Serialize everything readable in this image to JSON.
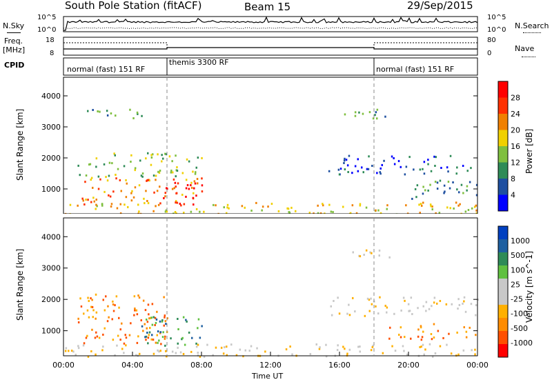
{
  "header": {
    "station": "South Pole Station (fitACF)",
    "beam": "Beam 15",
    "date": "29/Sep/2015"
  },
  "top_panels": {
    "nsky_label": "N.Sky",
    "nsky_ticks": [
      "10^5",
      "10^0"
    ],
    "nsearch_label": "N.Search",
    "nsearch_ticks": [
      "10^5",
      "10^0"
    ],
    "freq_label_1": "Freq.",
    "freq_label_2": "[MHz]",
    "freq_ticks": [
      "18",
      "8"
    ],
    "nave_label": "Nave",
    "nave_ticks": [
      "80",
      "0"
    ],
    "cpid_label": "CPID",
    "cpid_segments": [
      "normal (fast) 151 RF",
      "themis 3300 RF",
      "normal (fast) 151 RF"
    ]
  },
  "chart_data": [
    {
      "type": "heatmap",
      "title": "",
      "ylabel": "Slant Range [km]",
      "xlabel": "",
      "xlim": [
        0,
        24
      ],
      "ylim": [
        200,
        4600
      ],
      "y_ticks": [
        "1000",
        "2000",
        "3000",
        "4000"
      ],
      "colorbar_label": "Power [dB]",
      "colorbar_ticks": [
        "28",
        "24",
        "20",
        "16",
        "12",
        "8",
        "4"
      ],
      "colors": [
        "#0000ff",
        "#1e4fa0",
        "#2e8b57",
        "#7fbf3f",
        "#f0d000",
        "#f08000",
        "#ff3000",
        "#ff0000"
      ],
      "regions": [
        {
          "t0": 0.8,
          "t1": 8.0,
          "r0": 1400,
          "r1": 2200,
          "level": 3
        },
        {
          "t0": 1.0,
          "t1": 8.0,
          "r0": 500,
          "r1": 1400,
          "level": 5
        },
        {
          "t0": 5.6,
          "t1": 8.0,
          "r0": 500,
          "r1": 1300,
          "level": 7
        },
        {
          "t0": 15.0,
          "t1": 24.0,
          "r0": 1500,
          "r1": 2100,
          "level": 1
        },
        {
          "t0": 20.0,
          "t1": 24.0,
          "r0": 700,
          "r1": 1300,
          "level": 2
        },
        {
          "t0": 0.0,
          "t1": 24.0,
          "r0": 200,
          "r1": 600,
          "level": 4
        },
        {
          "t0": 1.0,
          "t1": 5.0,
          "r0": 3300,
          "r1": 3600,
          "level": 2
        },
        {
          "t0": 16.0,
          "t1": 19.0,
          "r0": 3300,
          "r1": 3600,
          "level": 2
        }
      ]
    },
    {
      "type": "heatmap",
      "title": "",
      "ylabel": "Slant Range [km]",
      "xlabel": "Time UT",
      "xlim": [
        0,
        24
      ],
      "ylim": [
        200,
        4600
      ],
      "x_ticks": [
        "00:00",
        "04:00",
        "08:00",
        "12:00",
        "16:00",
        "20:00",
        "00:00"
      ],
      "y_ticks": [
        "1000",
        "2000",
        "3000",
        "4000"
      ],
      "colorbar_label": "Velocity [m s^-1]",
      "colorbar_ticks": [
        "1000",
        "500",
        "100",
        "25",
        "-25",
        "-100",
        "-500",
        "-1000"
      ],
      "colors": [
        "#ff0000",
        "#ff5000",
        "#ff8c00",
        "#ffb000",
        "#c8c8c8",
        "#c8c8c8",
        "#60c040",
        "#2e8b57",
        "#1e5fa0",
        "#0040c0"
      ],
      "regions": [
        {
          "t0": 0.8,
          "t1": 6.0,
          "r0": 600,
          "r1": 2200,
          "level": 2
        },
        {
          "t0": 4.5,
          "t1": 8.0,
          "r0": 500,
          "r1": 1500,
          "level": 7
        },
        {
          "t0": 15.0,
          "t1": 24.0,
          "r0": 1500,
          "r1": 2100,
          "level": 4
        },
        {
          "t0": 18.5,
          "t1": 24.0,
          "r0": 700,
          "r1": 1300,
          "level": 2
        },
        {
          "t0": 0.0,
          "t1": 24.0,
          "r0": 200,
          "r1": 600,
          "level": 4
        },
        {
          "t0": 16.0,
          "t1": 19.0,
          "r0": 3300,
          "r1": 3600,
          "level": 4
        }
      ]
    }
  ]
}
